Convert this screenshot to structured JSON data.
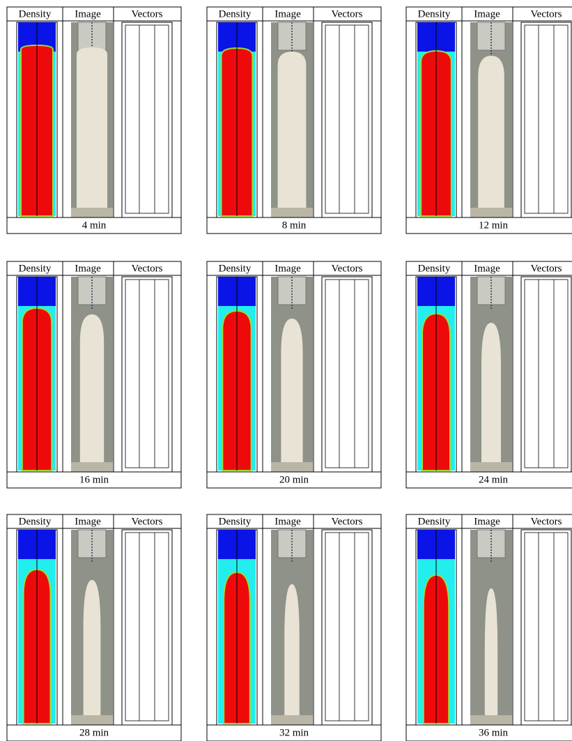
{
  "panels": [
    {
      "headers": [
        "Density",
        "Image",
        "Vectors"
      ],
      "label": "4 min"
    },
    {
      "headers": [
        "Density",
        "Image",
        "Vectors"
      ],
      "label": "8 min"
    },
    {
      "headers": [
        "Density",
        "Image",
        "Vectors"
      ],
      "label": "12 min"
    },
    {
      "headers": [
        "Density",
        "Image",
        "Vectors"
      ],
      "label": "16 min"
    },
    {
      "headers": [
        "Density",
        "Image",
        "Vectors"
      ],
      "label": "20 min"
    },
    {
      "headers": [
        "Density",
        "Image",
        "Vectors"
      ],
      "label": "24 min"
    },
    {
      "headers": [
        "Density",
        "Image",
        "Vectors"
      ],
      "label": "28 min"
    },
    {
      "headers": [
        "Density",
        "Image",
        "Vectors"
      ],
      "label": "32 min"
    },
    {
      "headers": [
        "Density",
        "Image",
        "Vectors"
      ],
      "label": "36 min"
    }
  ]
}
